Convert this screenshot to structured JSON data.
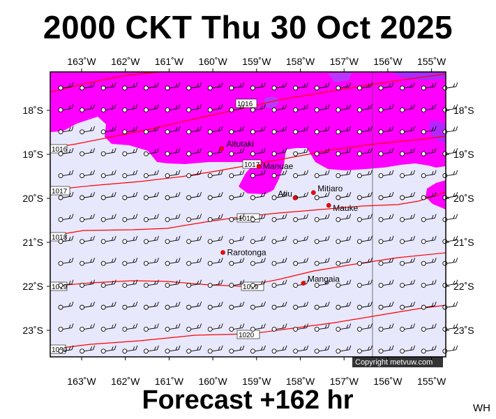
{
  "title": "2000 CKT Thu 30 Oct 2025",
  "footer": "Forecast +162 hr",
  "region_code": "WH",
  "copyright": "Copyright metvuw.com",
  "colors": {
    "background": "#e8e8fc",
    "rain_light": "#ff00ff",
    "rain_heavy": "#9b30ff",
    "isobar": "#ff0000",
    "island": "#ff0000"
  },
  "lon_labels": [
    "163˚W",
    "162˚W",
    "161˚W",
    "160˚W",
    "159˚W",
    "158˚W",
    "157˚W",
    "156˚W",
    "155˚W"
  ],
  "lat_labels": [
    "18˚S",
    "19˚S",
    "20˚S",
    "21˚S",
    "22˚S",
    "23˚S"
  ],
  "isobar_labels": [
    "1016",
    "1016",
    "1017",
    "1017",
    "1018",
    "1018",
    "1019",
    "1019",
    "1020",
    "1020"
  ],
  "islands": [
    {
      "name": "Aitutaki",
      "lon": -159.8,
      "lat": -18.87
    },
    {
      "name": "Manuae",
      "lon": -158.95,
      "lat": -19.27
    },
    {
      "name": "Atiu",
      "lon": -158.12,
      "lat": -19.99
    },
    {
      "name": "Mitiaro",
      "lon": -157.7,
      "lat": -19.87
    },
    {
      "name": "Mauke",
      "lon": -157.35,
      "lat": -20.16
    },
    {
      "name": "Rarotonga",
      "lon": -159.77,
      "lat": -21.23
    },
    {
      "name": "Mangaia",
      "lon": -157.93,
      "lat": -21.93
    }
  ]
}
